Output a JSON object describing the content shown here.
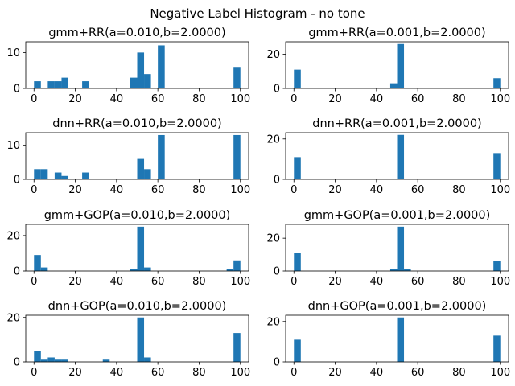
{
  "figure": {
    "suptitle": "Negative Label Histogram - no tone",
    "bar_color": "#1f77b4"
  },
  "chart_data": [
    {
      "type": "bar",
      "title": "gmm+RR(a=0.010,b=2.0000)",
      "xlim": [
        -4,
        104
      ],
      "ylim": [
        0,
        13
      ],
      "xticks": [
        "0",
        "20",
        "40",
        "60",
        "80",
        "100"
      ],
      "yticks": [
        "0",
        "10"
      ],
      "bin_width": 3.33,
      "bins": [
        {
          "x": 0,
          "value": 2
        },
        {
          "x": 6.67,
          "value": 2
        },
        {
          "x": 10,
          "value": 2
        },
        {
          "x": 13.33,
          "value": 3
        },
        {
          "x": 23.33,
          "value": 2
        },
        {
          "x": 46.67,
          "value": 3
        },
        {
          "x": 50,
          "value": 10
        },
        {
          "x": 53.33,
          "value": 4
        },
        {
          "x": 60,
          "value": 12
        },
        {
          "x": 96.67,
          "value": 6
        }
      ]
    },
    {
      "type": "bar",
      "title": "gmm+RR(a=0.001,b=2.0000)",
      "xlim": [
        -4,
        104
      ],
      "ylim": [
        0,
        27.3
      ],
      "xticks": [
        "0",
        "20",
        "40",
        "60",
        "80",
        "100"
      ],
      "yticks": [
        "0",
        "20"
      ],
      "bin_width": 3.33,
      "bins": [
        {
          "x": 0,
          "value": 11
        },
        {
          "x": 46.67,
          "value": 3
        },
        {
          "x": 50,
          "value": 26
        },
        {
          "x": 96.67,
          "value": 6
        }
      ]
    },
    {
      "type": "bar",
      "title": "dnn+RR(a=0.010,b=2.0000)",
      "xlim": [
        -4,
        104
      ],
      "ylim": [
        0,
        13.7
      ],
      "xticks": [
        "0",
        "20",
        "40",
        "60",
        "80",
        "100"
      ],
      "yticks": [
        "0",
        "10"
      ],
      "bin_width": 3.33,
      "bins": [
        {
          "x": 0,
          "value": 3
        },
        {
          "x": 3.33,
          "value": 3
        },
        {
          "x": 10,
          "value": 2
        },
        {
          "x": 13.33,
          "value": 1
        },
        {
          "x": 23.33,
          "value": 2
        },
        {
          "x": 50,
          "value": 6
        },
        {
          "x": 53.33,
          "value": 3
        },
        {
          "x": 60,
          "value": 13
        },
        {
          "x": 96.67,
          "value": 13
        }
      ]
    },
    {
      "type": "bar",
      "title": "dnn+RR(a=0.001,b=2.0000)",
      "xlim": [
        -4,
        104
      ],
      "ylim": [
        0,
        23.1
      ],
      "xticks": [
        "0",
        "20",
        "40",
        "60",
        "80",
        "100"
      ],
      "yticks": [
        "0",
        "20"
      ],
      "bin_width": 3.33,
      "bins": [
        {
          "x": 0,
          "value": 11
        },
        {
          "x": 50,
          "value": 22
        },
        {
          "x": 96.67,
          "value": 13
        }
      ]
    },
    {
      "type": "bar",
      "title": "gmm+GOP(a=0.010,b=2.0000)",
      "xlim": [
        -4,
        104
      ],
      "ylim": [
        0,
        26.3
      ],
      "xticks": [
        "0",
        "20",
        "40",
        "60",
        "80",
        "100"
      ],
      "yticks": [
        "0",
        "20"
      ],
      "bin_width": 3.33,
      "bins": [
        {
          "x": 0,
          "value": 9
        },
        {
          "x": 3.33,
          "value": 2
        },
        {
          "x": 46.67,
          "value": 1
        },
        {
          "x": 50,
          "value": 25
        },
        {
          "x": 53.33,
          "value": 2
        },
        {
          "x": 93.33,
          "value": 1
        },
        {
          "x": 96.67,
          "value": 6
        }
      ]
    },
    {
      "type": "bar",
      "title": "gmm+GOP(a=0.001,b=2.0000)",
      "xlim": [
        -4,
        104
      ],
      "ylim": [
        0,
        28.4
      ],
      "xticks": [
        "0",
        "20",
        "40",
        "60",
        "80",
        "100"
      ],
      "yticks": [
        "0",
        "20"
      ],
      "bin_width": 3.33,
      "bins": [
        {
          "x": 0,
          "value": 11
        },
        {
          "x": 46.67,
          "value": 1
        },
        {
          "x": 50,
          "value": 27
        },
        {
          "x": 53.33,
          "value": 1
        },
        {
          "x": 96.67,
          "value": 6
        }
      ]
    },
    {
      "type": "bar",
      "title": "dnn+GOP(a=0.010,b=2.0000)",
      "xlim": [
        -4,
        104
      ],
      "ylim": [
        0,
        21
      ],
      "xticks": [
        "0",
        "20",
        "40",
        "60",
        "80",
        "100"
      ],
      "yticks": [
        "0",
        "20"
      ],
      "bin_width": 3.33,
      "bins": [
        {
          "x": 0,
          "value": 5
        },
        {
          "x": 3.33,
          "value": 1
        },
        {
          "x": 6.67,
          "value": 2
        },
        {
          "x": 10,
          "value": 1
        },
        {
          "x": 13.33,
          "value": 1
        },
        {
          "x": 33.33,
          "value": 1
        },
        {
          "x": 50,
          "value": 20
        },
        {
          "x": 53.33,
          "value": 2
        },
        {
          "x": 96.67,
          "value": 13
        }
      ]
    },
    {
      "type": "bar",
      "title": "dnn+GOP(a=0.001,b=2.0000)",
      "xlim": [
        -4,
        104
      ],
      "ylim": [
        0,
        23.1
      ],
      "xticks": [
        "0",
        "20",
        "40",
        "60",
        "80",
        "100"
      ],
      "yticks": [
        "0",
        "20"
      ],
      "bin_width": 3.33,
      "bins": [
        {
          "x": 0,
          "value": 11
        },
        {
          "x": 50,
          "value": 22
        },
        {
          "x": 96.67,
          "value": 13
        }
      ]
    }
  ]
}
